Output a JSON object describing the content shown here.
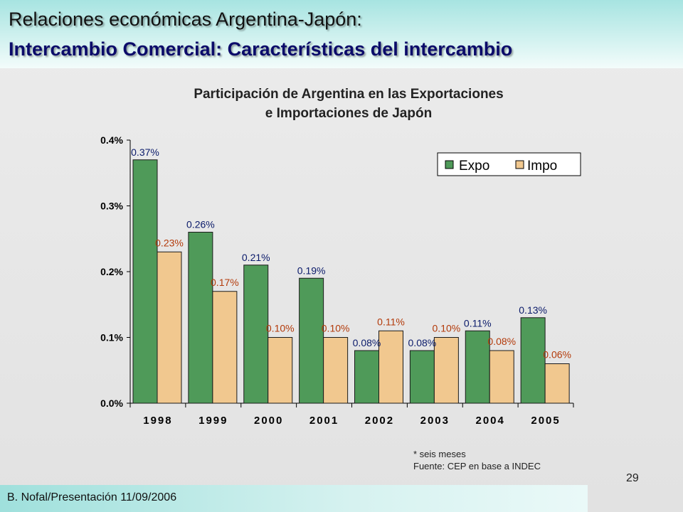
{
  "header": {
    "title_line1": "Relaciones económicas Argentina-Japón:",
    "title_line2": "Intercambio Comercial: Características del intercambio"
  },
  "chart_data": {
    "type": "bar",
    "title_line1": "Participación de Argentina en las Exportaciones",
    "title_line2": "e Importaciones de Japón",
    "categories": [
      "1998",
      "1999",
      "2000",
      "2001",
      "2002",
      "2003",
      "2004",
      "2005"
    ],
    "series": [
      {
        "name": "Expo",
        "values": [
          0.37,
          0.26,
          0.21,
          0.19,
          0.08,
          0.08,
          0.11,
          0.13
        ],
        "labels": [
          "0.37%",
          "0.26%",
          "0.21%",
          "0.19%",
          "0.08%",
          "0.08%",
          "0.11%",
          "0.13%"
        ],
        "color": "#4f9a59",
        "label_color": "#0a1a6a"
      },
      {
        "name": "Impo",
        "values": [
          0.23,
          0.17,
          0.1,
          0.1,
          0.11,
          0.1,
          0.08,
          0.06
        ],
        "labels": [
          "0.23%",
          "0.17%",
          "0.10%",
          "0.10%",
          "0.11%",
          "0.10%",
          "0.08%",
          "0.06%"
        ],
        "color": "#f1c88f",
        "label_color": "#b33a0a"
      }
    ],
    "y_ticks": [
      "0.0%",
      "0.1%",
      "0.2%",
      "0.3%",
      "0.4%"
    ],
    "ylim": [
      0,
      0.4
    ],
    "legend_position": "top-right",
    "grid": false
  },
  "notes": {
    "line1": "* seis meses",
    "line2": "Fuente: CEP en base a INDEC"
  },
  "page_number": "29",
  "footer": {
    "text": "B. Nofal/Presentación 11/09/2006"
  }
}
